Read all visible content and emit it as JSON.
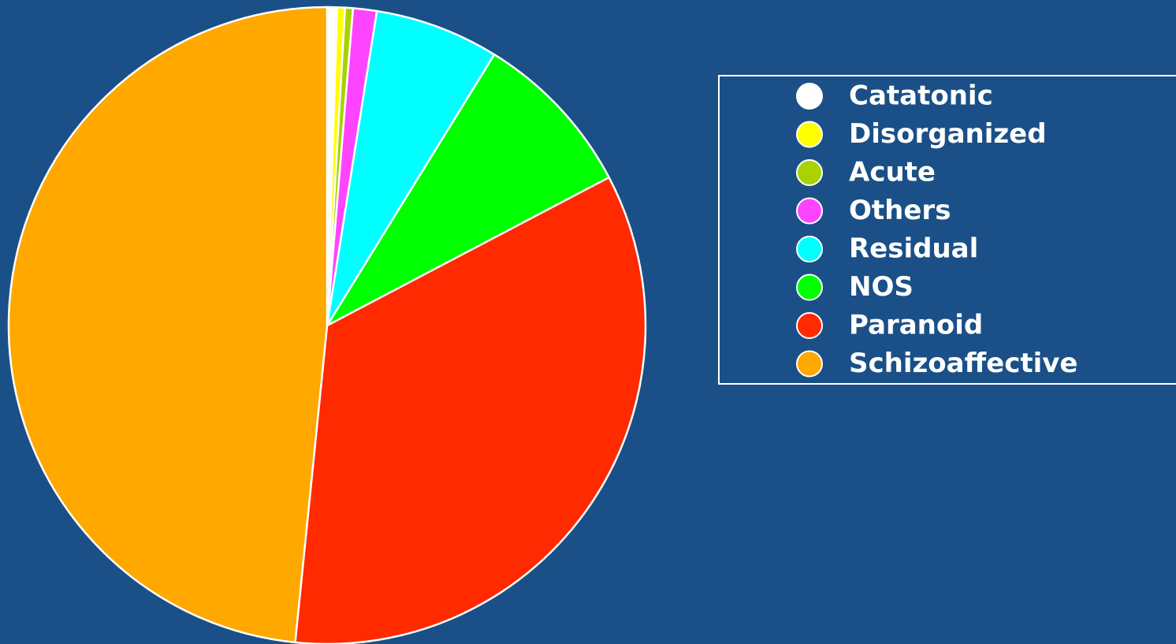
{
  "chart_data": {
    "type": "pie",
    "categories": [
      "Catatonic",
      "Disorganized",
      "Acute",
      "Others",
      "Residual",
      "NOS",
      "Paranoid",
      "Schizoaffective"
    ],
    "values": [
      0.5,
      0.4,
      0.4,
      1.2,
      6.3,
      8.5,
      34.3,
      48.4
    ],
    "colors": [
      "#ffffff",
      "#ffff00",
      "#a8d300",
      "#ff44ff",
      "#00ffff",
      "#00ff00",
      "#ff2a00",
      "#ffa800"
    ],
    "legend": "top-right"
  }
}
